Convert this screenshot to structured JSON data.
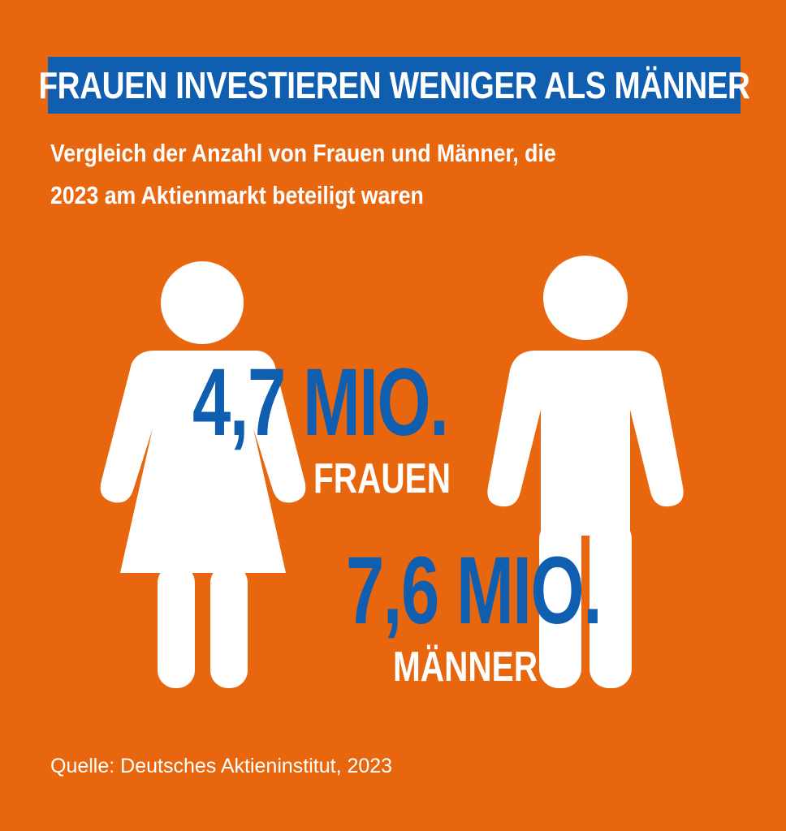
{
  "title": "FRAUEN INVESTIEREN WENIGER ALS MÄNNER",
  "subtitle": "Vergleich der Anzahl von Frauen und Männer, die 2023 am Aktienmarkt beteiligt waren",
  "women": {
    "value": "4,7 MIO.",
    "label": "FRAUEN"
  },
  "men": {
    "value": "7,6 MIO.",
    "label": "MÄNNER"
  },
  "source": "Quelle: Deutsches Aktieninstitut, 2023",
  "colors": {
    "background": "#e8670e",
    "accent": "#0f5eb0",
    "figure": "#ffffff"
  },
  "icons": [
    "woman-figure-icon",
    "man-figure-icon"
  ]
}
